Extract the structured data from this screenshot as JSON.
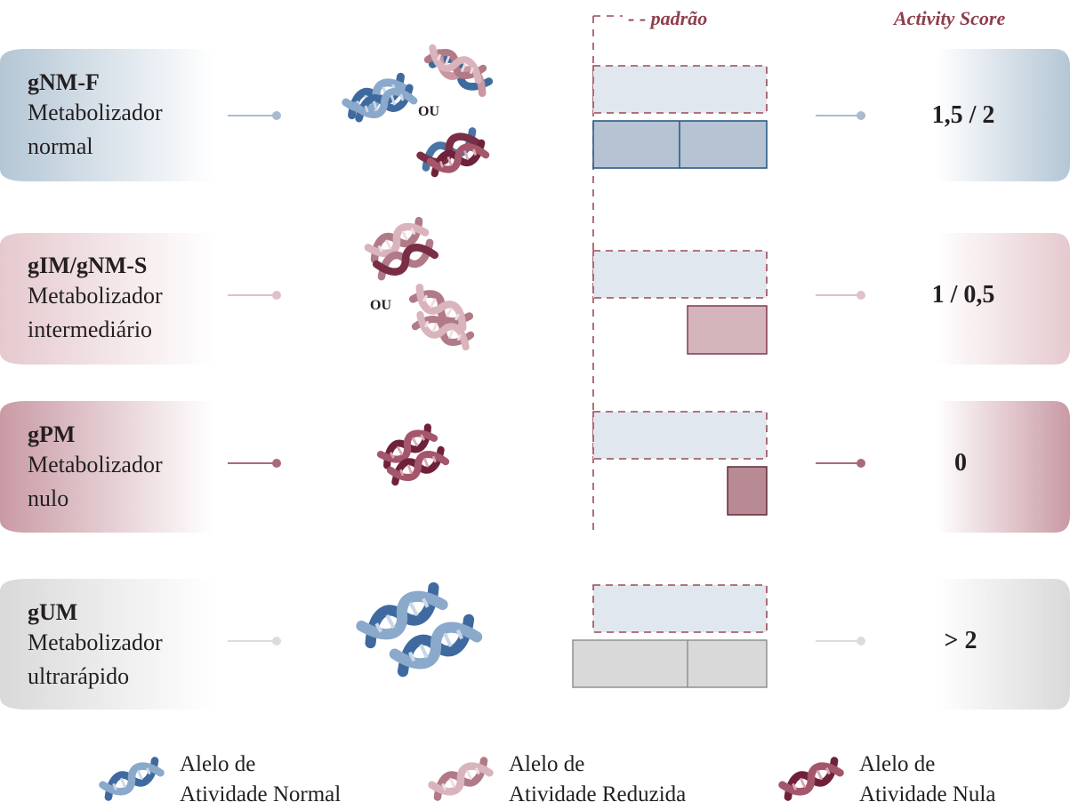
{
  "headers": {
    "standard": "- - padrão",
    "score": "Activity Score"
  },
  "phenotypes": [
    {
      "code": "gNM-F",
      "line1": "Metabolizador",
      "line2": "normal",
      "score": "1,5 / 2",
      "color": "#b4c6d5"
    },
    {
      "code": "gIM/gNM-S",
      "line1": "Metabolizador",
      "line2": "intermediário",
      "score": "1 / 0,5",
      "color": "#e5c7cc"
    },
    {
      "code": "gPM",
      "line1": "Metabolizador",
      "line2": "nulo",
      "score": "0",
      "color": "#c99aa4"
    },
    {
      "code": "gUM",
      "line1": "Metabolizador",
      "line2": "ultrarápido",
      "score": "> 2",
      "color": "#d6d6d6"
    }
  ],
  "or_label": "OU",
  "legend": [
    {
      "line1": "Alelo de",
      "line2": "Atividade Normal",
      "icon": "blue-dna-icon"
    },
    {
      "line1": "Alelo de",
      "line2": "Atividade Reduzida",
      "icon": "pink-dna-icon"
    },
    {
      "line1": "Alelo de",
      "line2": "Atividade Nula",
      "icon": "maroon-dna-icon"
    }
  ],
  "colors": {
    "normal": "#4e76a6",
    "reduced": "#b88591",
    "null": "#7a2e45",
    "standard_box": "#e1e7ef",
    "dash": "#9b4a57"
  }
}
